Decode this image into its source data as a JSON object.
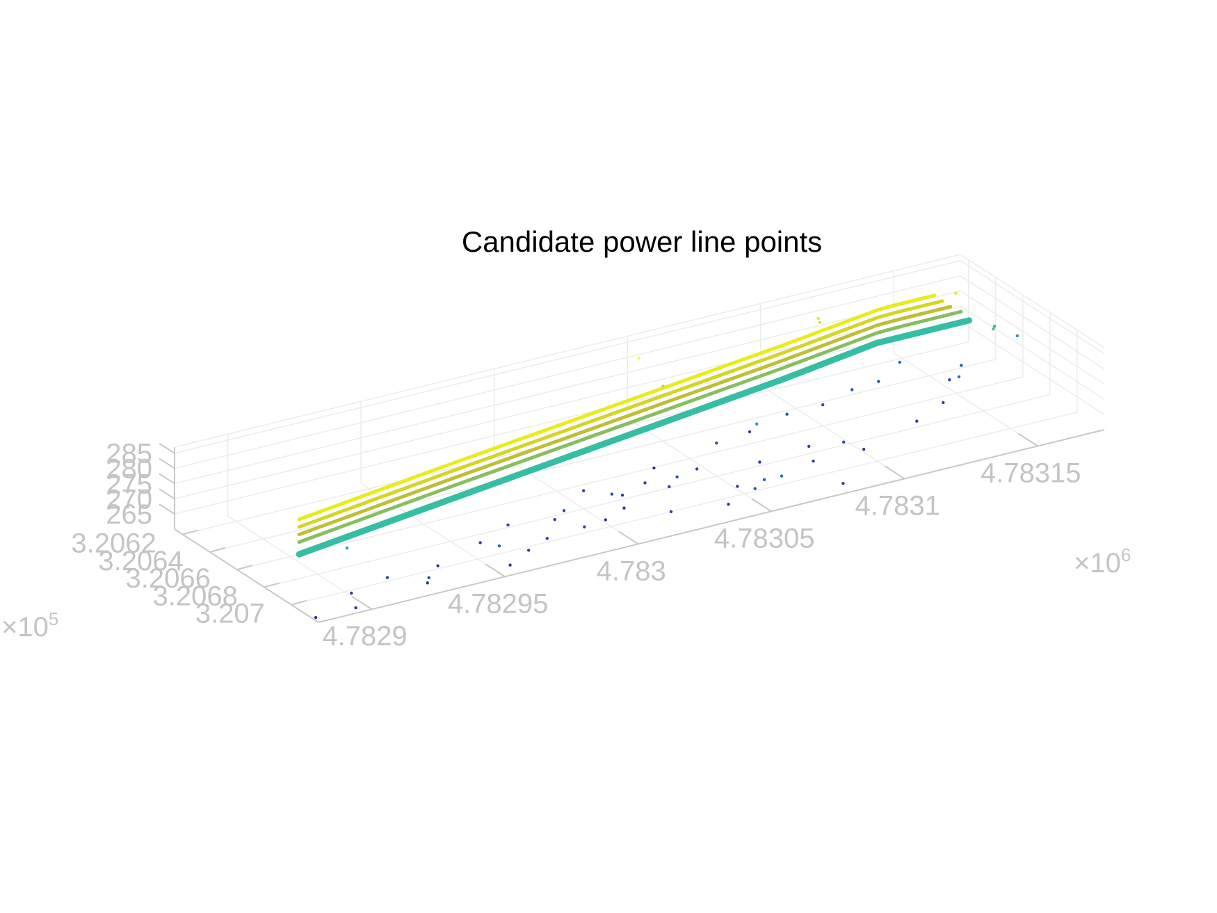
{
  "chart_data": {
    "type": "scatter",
    "title": "Candidate power line points",
    "xlabel": "",
    "ylabel": "",
    "zlabel": "",
    "grid": true,
    "colormap": "parula",
    "x_axis": {
      "ticks": [
        "4.7829",
        "4.78295",
        "4.783",
        "4.78305",
        "4.7831",
        "4.78315"
      ],
      "exponent_base": "×10",
      "exponent_power": "6",
      "range": [
        4782880,
        4783175
      ]
    },
    "y_axis": {
      "ticks": [
        "3.2062",
        "3.2064",
        "3.2066",
        "3.2068",
        "3.207"
      ],
      "exponent_base": "×10",
      "exponent_power": "5",
      "range": [
        320614,
        320720
      ]
    },
    "z_axis": {
      "ticks": [
        "265",
        "270",
        "275",
        "280",
        "285"
      ],
      "range": [
        260,
        287
      ]
    },
    "series": [
      {
        "values": [
          [
            4782888,
            320690,
            283.5
          ],
          [
            4782950,
            320678,
            284.6
          ],
          [
            4783020,
            320664,
            285.2
          ],
          [
            4783090,
            320650,
            285.8
          ],
          [
            4783130,
            320641,
            286.2
          ],
          [
            4783137,
            320640,
            286.0
          ],
          [
            4783152,
            320640,
            286.0
          ]
        ]
      },
      {
        "values": [
          [
            4782888,
            320690,
            281.0
          ],
          [
            4782950,
            320678,
            282.1
          ],
          [
            4783020,
            320664,
            282.7
          ],
          [
            4783090,
            320650,
            283.3
          ],
          [
            4783130,
            320641,
            283.7
          ],
          [
            4783138,
            320640,
            283.5
          ],
          [
            4783155,
            320640,
            283.5
          ]
        ]
      },
      {
        "values": [
          [
            4782888,
            320690,
            278.5
          ],
          [
            4782950,
            320678,
            279.6
          ],
          [
            4783020,
            320664,
            280.2
          ],
          [
            4783090,
            320650,
            280.8
          ],
          [
            4783130,
            320641,
            281.2
          ],
          [
            4783139,
            320640,
            281.0
          ],
          [
            4783158,
            320640,
            281.0
          ]
        ]
      },
      {
        "values": [
          [
            4782888,
            320690,
            276.0
          ],
          [
            4782950,
            320678,
            277.1
          ],
          [
            4783020,
            320664,
            277.7
          ],
          [
            4783090,
            320650,
            278.3
          ],
          [
            4783130,
            320641,
            278.7
          ],
          [
            4783140,
            320640,
            278.5
          ],
          [
            4783162,
            320640,
            278.5
          ]
        ]
      },
      {
        "values": [
          [
            4782888,
            320690,
            272.0
          ],
          [
            4782950,
            320678,
            273.0
          ],
          [
            4783020,
            320664,
            273.8
          ],
          [
            4783090,
            320650,
            274.6
          ],
          [
            4783130,
            320641,
            275.4
          ],
          [
            4783140,
            320640,
            275.0
          ],
          [
            4783165,
            320640,
            275.0
          ]
        ]
      }
    ],
    "scattered_points": [
      [
        4782985,
        320688,
        262
      ],
      [
        4782990,
        320685,
        263
      ],
      [
        4783005,
        320670,
        262
      ],
      [
        4783035,
        320663,
        261
      ],
      [
        4783060,
        320660,
        263
      ],
      [
        4783075,
        320655,
        262
      ],
      [
        4783090,
        320653,
        264
      ],
      [
        4783105,
        320650,
        263
      ],
      [
        4783118,
        320646,
        264
      ],
      [
        4783130,
        320642,
        263
      ],
      [
        4782970,
        320683,
        262
      ],
      [
        4783015,
        320679,
        261
      ],
      [
        4783045,
        320675,
        262
      ],
      [
        4783000,
        320696,
        261
      ],
      [
        4783030,
        320684,
        262
      ],
      [
        4782955,
        320692,
        262
      ],
      [
        4782935,
        320700,
        261
      ],
      [
        4782915,
        320702,
        262
      ],
      [
        4782900,
        320705,
        261
      ],
      [
        4783010,
        320690,
        261
      ],
      [
        4783050,
        320695,
        261
      ],
      [
        4783065,
        320682,
        262
      ],
      [
        4783085,
        320679,
        262
      ],
      [
        4783100,
        320690,
        261
      ],
      [
        4783125,
        320680,
        262
      ],
      [
        4783140,
        320670,
        262
      ],
      [
        4783150,
        320655,
        263
      ],
      [
        4782925,
        320712,
        261
      ],
      [
        4782955,
        320714,
        261
      ],
      [
        4782965,
        320708,
        262
      ],
      [
        4783020,
        320705,
        262
      ],
      [
        4783040,
        320708,
        261
      ],
      [
        4783080,
        320714,
        261
      ],
      [
        4782880,
        320718,
        261
      ],
      [
        4782895,
        320718,
        261
      ],
      [
        4783160,
        320640,
        285
      ],
      [
        4783168,
        320652,
        275
      ],
      [
        4783172,
        320645,
        273
      ],
      [
        4783178,
        320650,
        270
      ],
      [
        4783055,
        320705,
        265
      ],
      [
        4783060,
        320708,
        266
      ],
      [
        4783050,
        320708,
        264
      ],
      [
        4783112,
        320633,
        285
      ],
      [
        4783112,
        320634,
        284
      ],
      [
        4783040,
        320642,
        290
      ],
      [
        4783045,
        320650,
        282
      ],
      [
        4782925,
        320713,
        263
      ],
      [
        4783070,
        320670,
        270
      ],
      [
        4782955,
        320706,
        265
      ],
      [
        4782905,
        320692,
        271
      ],
      [
        4782990,
        320700,
        262
      ],
      [
        4782975,
        320702,
        262
      ],
      [
        4783010,
        320681,
        263
      ],
      [
        4783080,
        320692,
        262
      ],
      [
        4783095,
        320685,
        263
      ],
      [
        4783025,
        320676,
        262
      ],
      [
        4783035,
        320680,
        263
      ],
      [
        4783140,
        320638,
        266
      ],
      [
        4783150,
        320662,
        266
      ],
      [
        4783158,
        320648,
        264
      ]
    ]
  }
}
